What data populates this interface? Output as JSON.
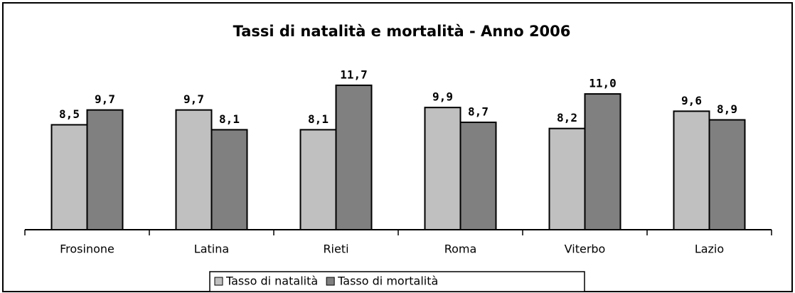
{
  "chart_data": {
    "type": "bar",
    "title": "Tassi di natalità e mortalità - Anno 2006",
    "categories": [
      "Frosinone",
      "Latina",
      "Rieti",
      "Roma",
      "Viterbo",
      "Lazio"
    ],
    "series": [
      {
        "name": "Tasso di natalità",
        "color": "#c0c0c0",
        "values": [
          8.5,
          9.7,
          8.1,
          9.9,
          8.2,
          9.6
        ],
        "value_labels": [
          "8,5",
          "9,7",
          "8,1",
          "9,9",
          "8,2",
          "9,6"
        ]
      },
      {
        "name": "Tasso di mortalità",
        "color": "#808080",
        "values": [
          9.7,
          8.1,
          11.7,
          8.7,
          11.0,
          8.9
        ],
        "value_labels": [
          "9,7",
          "8,1",
          "11,7",
          "8,7",
          "11,0",
          "8,9"
        ]
      }
    ],
    "ylim": [
      0,
      14
    ]
  }
}
